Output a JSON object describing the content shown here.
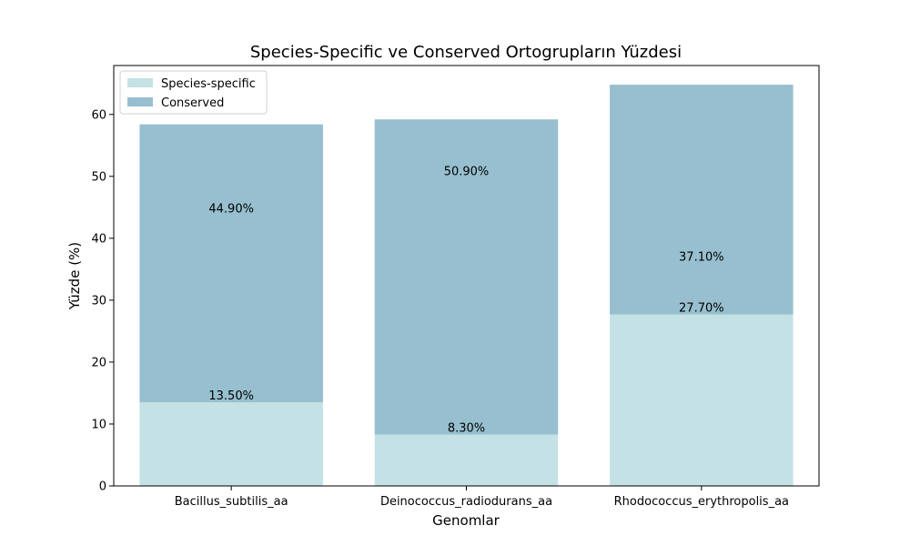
{
  "chart_data": {
    "type": "bar",
    "stacked": true,
    "title": "Species-Specific ve Conserved Ortogrupların Yüzdesi",
    "xlabel": "Genomlar",
    "ylabel": "Yüzde (%)",
    "categories": [
      "Bacillus_subtilis_aa",
      "Deinococcus_radiodurans_aa",
      "Rhodococcus_erythropolis_aa"
    ],
    "series": [
      {
        "name": "Species-specific",
        "values": [
          13.5,
          8.3,
          27.7
        ],
        "labels": [
          "13.50%",
          "8.30%",
          "27.70%"
        ],
        "color": "#c4e1e6"
      },
      {
        "name": "Conserved",
        "values": [
          44.9,
          50.9,
          37.1
        ],
        "labels": [
          "44.90%",
          "50.90%",
          "37.10%"
        ],
        "color": "#97bfcf"
      }
    ],
    "ylim": [
      0,
      67.9
    ],
    "yticks": [
      0,
      10,
      20,
      30,
      40,
      50,
      60
    ],
    "legend_position": "top-left",
    "grid": false
  }
}
